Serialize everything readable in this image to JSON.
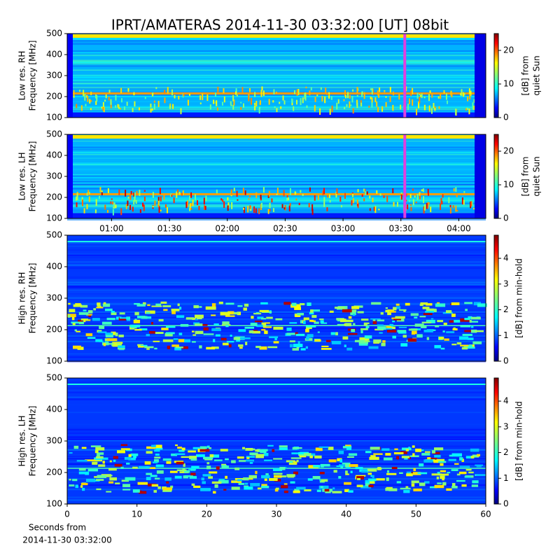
{
  "title": "IPRT/AMATERAS 2014-11-30 03:32:00 [UT]   08bit",
  "chart_data": [
    {
      "type": "spectrogram",
      "ylabel": [
        "Low res. RH",
        "Frequency [MHz]"
      ],
      "ylim": [
        100,
        500
      ],
      "yticks": [
        100,
        200,
        300,
        400,
        500
      ],
      "xlim": [
        "00:37",
        "04:14"
      ],
      "cursor_x": "03:32",
      "cursor_color": "#e040e0",
      "colormap": "jet",
      "clim": [
        0,
        25
      ],
      "cticks": [
        0,
        10,
        20
      ],
      "clabel": [
        "[dB] from",
        "quiet Sun"
      ],
      "resolution": "low"
    },
    {
      "type": "spectrogram",
      "ylabel": [
        "Low res. LH",
        "Frequency [MHz]"
      ],
      "ylim": [
        100,
        500
      ],
      "yticks": [
        100,
        200,
        300,
        400,
        500
      ],
      "xlim": [
        "00:37",
        "04:14"
      ],
      "xticks": [
        "01:00",
        "01:30",
        "02:00",
        "02:30",
        "03:00",
        "03:30",
        "04:00"
      ],
      "cursor_x": "03:32",
      "cursor_color": "#e040e0",
      "colormap": "jet",
      "clim": [
        0,
        25
      ],
      "cticks": [
        0,
        10,
        20
      ],
      "clabel": [
        "[dB] from",
        "quiet Sun"
      ],
      "resolution": "low"
    },
    {
      "type": "spectrogram",
      "ylabel": [
        "High res. RH",
        "Frequency [MHz]"
      ],
      "ylim": [
        100,
        500
      ],
      "yticks": [
        100,
        200,
        300,
        400,
        500
      ],
      "xlim": [
        0,
        60
      ],
      "colormap": "jet",
      "clim": [
        0,
        4.9
      ],
      "cticks": [
        0,
        1,
        2,
        3,
        4
      ],
      "clabel": [
        "[dB] from min-hold"
      ],
      "resolution": "high"
    },
    {
      "type": "spectrogram",
      "ylabel": [
        "High res. LH",
        "Frequency [MHz]"
      ],
      "ylim": [
        100,
        500
      ],
      "yticks": [
        100,
        200,
        300,
        400,
        500
      ],
      "xlim": [
        0,
        60
      ],
      "xticks": [
        0,
        10,
        20,
        30,
        40,
        50,
        60
      ],
      "xlabel": [
        "Seconds from",
        "2014-11-30 03:32:00"
      ],
      "colormap": "jet",
      "clim": [
        0,
        4.9
      ],
      "cticks": [
        0,
        1,
        2,
        3,
        4
      ],
      "clabel": [
        "[dB] from min-hold"
      ],
      "resolution": "high"
    }
  ]
}
